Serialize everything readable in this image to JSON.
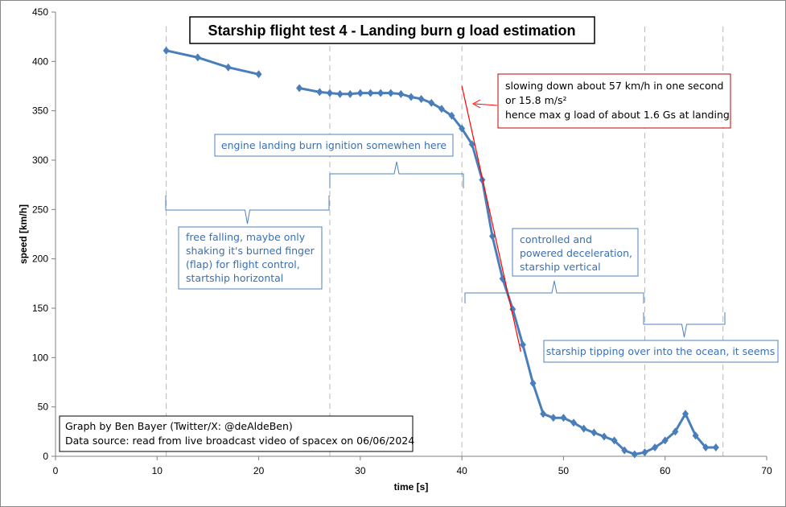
{
  "chart_data": {
    "type": "line",
    "title": "Starship  flight  test 4 - Landing  burn  g load estimation",
    "xlabel": "time [s]",
    "ylabel": "speed [km/h]",
    "xlim": [
      0,
      70
    ],
    "ylim": [
      0,
      450
    ],
    "xticks": [
      0,
      10,
      20,
      30,
      40,
      50,
      60,
      70
    ],
    "yticks": [
      0,
      50,
      100,
      150,
      200,
      250,
      300,
      350,
      400,
      450
    ],
    "grid": false,
    "colors": {
      "series": "#4a7ebb",
      "estimate": "#ff0000",
      "guide": "#b8b8b8",
      "annotation_text": "#3b6fb0",
      "annotation_border": "#4f81bd",
      "title_border": "#000000",
      "callout_border": "#c00000"
    },
    "series_segments": [
      [
        [
          10.9,
          411
        ],
        [
          14,
          404
        ],
        [
          17,
          394
        ],
        [
          20,
          387
        ]
      ],
      [
        [
          24,
          373
        ],
        [
          26,
          369
        ],
        [
          27,
          368
        ],
        [
          28,
          367
        ],
        [
          29,
          367
        ],
        [
          30,
          368
        ],
        [
          31,
          368
        ],
        [
          32,
          368
        ],
        [
          33,
          368
        ],
        [
          34,
          367
        ],
        [
          35,
          364
        ],
        [
          36,
          362
        ],
        [
          37,
          358
        ],
        [
          38,
          352
        ],
        [
          39,
          345
        ],
        [
          40,
          332
        ],
        [
          41,
          316
        ],
        [
          42,
          280
        ],
        [
          43,
          223
        ],
        [
          44,
          180
        ],
        [
          45,
          149
        ],
        [
          46,
          113
        ],
        [
          47,
          74
        ],
        [
          48,
          43
        ],
        [
          49,
          39
        ],
        [
          50,
          39
        ],
        [
          51,
          34
        ],
        [
          52,
          28
        ],
        [
          53,
          24
        ],
        [
          54,
          20
        ],
        [
          55,
          16
        ],
        [
          56,
          6
        ],
        [
          57,
          2
        ],
        [
          58,
          4
        ],
        [
          59,
          9
        ],
        [
          60,
          16
        ],
        [
          61,
          25
        ],
        [
          62,
          43
        ],
        [
          63,
          21
        ],
        [
          64,
          9
        ],
        [
          65,
          9
        ]
      ]
    ],
    "estimate_line": [
      [
        40,
        375
      ],
      [
        45.8,
        106
      ]
    ],
    "guide_lines_x": [
      10.9,
      27,
      40,
      58,
      65.7
    ],
    "annotations": {
      "ignition": "engine landing burn ignition somewhen here",
      "free_fall": [
        "free falling, maybe only",
        "shaking it's burned finger",
        "(flap) for flight control,",
        "startship horizontal"
      ],
      "controlled": [
        "controlled and",
        "powered deceleration,",
        "starship vertical"
      ],
      "tipping": "starship tipping over into the ocean, it seems",
      "callout": [
        "slowing down about 57 km/h in one second",
        "or 15.8 m/s²",
        "hence max g load of about 1.6 Gs at landing"
      ],
      "credits": [
        "Graph by Ben Bayer (Twitter/X: @deAldeBen)",
        "Data source: read from live broadcast video of spacex on 06/06/2024"
      ]
    }
  }
}
